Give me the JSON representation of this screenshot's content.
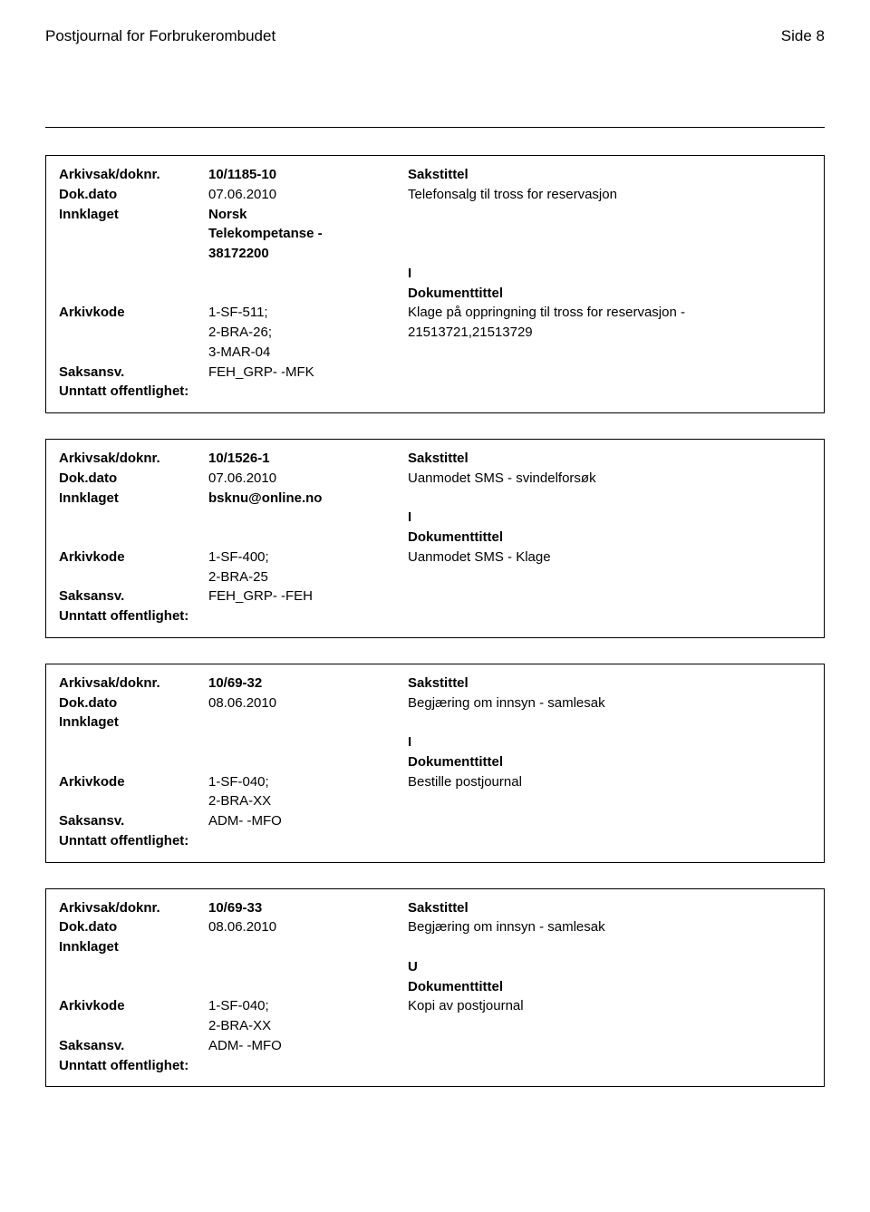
{
  "header": {
    "title": "Postjournal for Forbrukerombudet",
    "page": "Side 8"
  },
  "labels": {
    "arkivsak": "Arkivsak/doknr.",
    "dokdato": "Dok.dato",
    "innklaget": "Innklaget",
    "arkivkode": "Arkivkode",
    "saksansv": "Saksansv.",
    "unntatt": "Unntatt offentlighet:",
    "sakstittel": "Sakstittel",
    "dokumenttittel": "Dokumenttittel"
  },
  "records": [
    {
      "doknr": "10/1185-10",
      "dato": "07.06.2010",
      "innklaget_lines": [
        "Norsk",
        "Telekompetanse -",
        "38172200"
      ],
      "arkivkode_lines": [
        "1-SF-511;",
        "2-BRA-26;",
        "3-MAR-04"
      ],
      "saksansv": "FEH_GRP- -MFK",
      "sakstittel_text": "Telefonsalg til tross for reservasjon",
      "io": "I",
      "dokumenttittel_lines": [
        "Klage på oppringning til tross for reservasjon -",
        "21513721,21513729"
      ]
    },
    {
      "doknr": "10/1526-1",
      "dato": "07.06.2010",
      "innklaget_lines": [
        "bsknu@online.no"
      ],
      "arkivkode_lines": [
        "1-SF-400;",
        "2-BRA-25"
      ],
      "saksansv": "FEH_GRP- -FEH",
      "sakstittel_text": "Uanmodet SMS - svindelforsøk",
      "io": "I",
      "dokumenttittel_lines": [
        "Uanmodet SMS - Klage"
      ]
    },
    {
      "doknr": "10/69-32",
      "dato": "08.06.2010",
      "innklaget_lines": [],
      "arkivkode_lines": [
        "1-SF-040;",
        "2-BRA-XX"
      ],
      "saksansv": "ADM- -MFO",
      "sakstittel_text": "Begjæring om innsyn - samlesak",
      "io": "I",
      "dokumenttittel_lines": [
        "Bestille postjournal"
      ]
    },
    {
      "doknr": "10/69-33",
      "dato": "08.06.2010",
      "innklaget_lines": [],
      "arkivkode_lines": [
        "1-SF-040;",
        "2-BRA-XX"
      ],
      "saksansv": "ADM- -MFO",
      "sakstittel_text": "Begjæring om innsyn - samlesak",
      "io": "U",
      "dokumenttittel_lines": [
        "Kopi av postjournal"
      ]
    }
  ]
}
